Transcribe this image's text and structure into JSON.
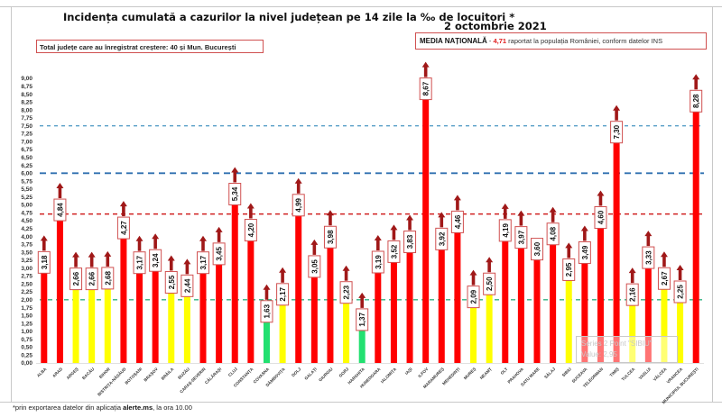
{
  "header": {
    "title": "Incidența cumulată a cazurilor la nivel județean pe 14 zile la ‰ de locuitori *",
    "date": "2 octombrie 2021"
  },
  "info_boxes": {
    "total_increase": "Total județe care au înregistrat creștere:  40 și Mun. București",
    "national_label": "MEDIA NAȚIONALĂ",
    "national_sep": " - ",
    "national_value": "4,71",
    "national_rest": " raportat la populația României, conform datelor INS"
  },
  "footnote": {
    "prefix": "*prin exportarea datelor din aplicația ",
    "app": "alerte.ms",
    "suffix": ", la ora 10.00"
  },
  "tooltip": {
    "line1": "Series 2 Point \"SIBIU\"",
    "line2": "Value: 2,95"
  },
  "colors": {
    "red": "#ff0000",
    "yellow": "#ffff00",
    "green": "#22e070",
    "arrow": "#a01818",
    "label_border": "#d05050",
    "line_7_5": "#5aa0c8",
    "line_6": "#3070b0",
    "line_4_71": "#d02020",
    "line_2": "#30b080"
  },
  "chart_data": {
    "type": "bar",
    "title": "Incidența cumulată a cazurilor la nivel județean pe 14 zile la ‰ de locuitori *",
    "xlabel": "",
    "ylabel": "",
    "ylim": [
      0,
      9
    ],
    "ytick_step": 0.25,
    "grid": false,
    "decimal_separator": ",",
    "reference_lines": [
      {
        "value": 7.5,
        "color_key": "line_7_5",
        "style": "dashed"
      },
      {
        "value": 6.0,
        "color_key": "line_6",
        "style": "dashed"
      },
      {
        "value": 4.71,
        "color_key": "line_4_71",
        "style": "dashed",
        "label": "Media națională"
      },
      {
        "value": 2.0,
        "color_key": "line_2",
        "style": "dashed"
      }
    ],
    "categories": [
      "ALBA",
      "ARAD",
      "ARGEȘ",
      "BACĂU",
      "BIHOR",
      "BISTRIȚA-NĂSĂUD",
      "BOTOȘANI",
      "BRAȘOV",
      "BRĂILA",
      "BUZĂU",
      "CARAȘ-SEVERIN",
      "CĂLĂRAȘI",
      "CLUJ",
      "CONSTANȚA",
      "COVASNA",
      "DÂMBOVIȚA",
      "DOLJ",
      "GALAȚI",
      "GIURGIU",
      "GORJ",
      "HARGHITA",
      "HUNEDOARA",
      "IALOMIȚA",
      "IAȘI",
      "ILFOV",
      "MARAMUREȘ",
      "MEHEDINȚI",
      "MUREȘ",
      "NEAMȚ",
      "OLT",
      "PRAHOVA",
      "SATU MARE",
      "SĂLAJ",
      "SIBIU",
      "SUCEAVA",
      "TELEORMAN",
      "TIMIȘ",
      "TULCEA",
      "VASLUI",
      "VÂLCEA",
      "VRANCEA",
      "MUNICIPIUL BUCUREȘTI"
    ],
    "values": [
      3.18,
      4.84,
      2.66,
      2.66,
      2.68,
      4.27,
      3.17,
      3.24,
      2.55,
      2.44,
      3.17,
      3.45,
      5.34,
      4.2,
      1.63,
      2.17,
      4.99,
      3.05,
      3.98,
      2.23,
      1.37,
      3.19,
      3.52,
      3.83,
      8.67,
      3.92,
      4.46,
      2.09,
      2.5,
      4.19,
      3.97,
      3.6,
      4.08,
      2.95,
      3.49,
      4.6,
      7.3,
      2.16,
      3.33,
      2.67,
      2.25,
      8.28
    ],
    "value_labels": [
      "3,18",
      "4,84",
      "2,66",
      "2,66",
      "2,68",
      "4,27",
      "3,17",
      "3,24",
      "2,55",
      "2,44",
      "3,17",
      "3,45",
      "5,34",
      "4,20",
      "1,63",
      "2,17",
      "4,99",
      "3,05",
      "3,98",
      "2,23",
      "1,37",
      "3,19",
      "3,52",
      "3,83",
      "8,67",
      "3,92",
      "4,46",
      "2,09",
      "2,50",
      "4,19",
      "3,97",
      "3,60",
      "4,08",
      "2,95",
      "3,49",
      "4,60",
      "7,30",
      "2,16",
      "3,33",
      "2,67",
      "2,25",
      "8,28"
    ],
    "colors": [
      "red",
      "red",
      "yellow",
      "yellow",
      "yellow",
      "red",
      "red",
      "red",
      "yellow",
      "yellow",
      "red",
      "red",
      "red",
      "red",
      "green",
      "yellow",
      "red",
      "red",
      "red",
      "yellow",
      "green",
      "red",
      "red",
      "red",
      "red",
      "red",
      "red",
      "yellow",
      "yellow",
      "red",
      "red",
      "red",
      "red",
      "yellow",
      "red",
      "red",
      "red",
      "yellow",
      "red",
      "yellow",
      "yellow",
      "red"
    ],
    "trend_up": [
      true,
      true,
      true,
      true,
      true,
      true,
      true,
      true,
      true,
      true,
      true,
      true,
      true,
      true,
      true,
      true,
      true,
      true,
      true,
      true,
      true,
      true,
      true,
      true,
      true,
      true,
      true,
      true,
      true,
      true,
      true,
      false,
      true,
      true,
      true,
      true,
      true,
      true,
      true,
      true,
      true,
      true
    ]
  }
}
